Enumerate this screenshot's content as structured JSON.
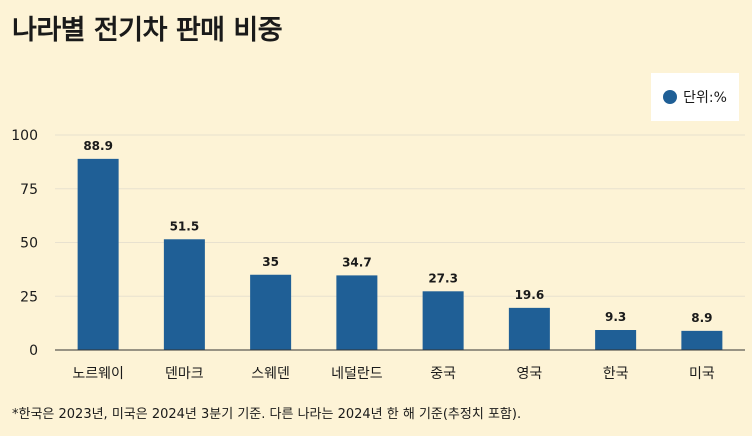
{
  "title": "나라별 전기차 판매 비중",
  "legend": {
    "label": "단위:%"
  },
  "footnote": "*한국은 2023년, 미국은 2024년 3분기 기준. 다른 나라는 2024년 한 해 기준(추정치 포함).",
  "colors": {
    "background": "#fdf3d6",
    "bar": "#1f5f96",
    "grid": "#e8e1cf",
    "axis": "#333333"
  },
  "chart_data": {
    "type": "bar",
    "categories": [
      "노르웨이",
      "덴마크",
      "스웨덴",
      "네덜란드",
      "중국",
      "영국",
      "한국",
      "미국"
    ],
    "values": [
      88.9,
      51.5,
      35,
      34.7,
      27.3,
      19.6,
      9.3,
      8.9
    ],
    "value_labels": [
      "88.9",
      "51.5",
      "35",
      "34.7",
      "27.3",
      "19.6",
      "9.3",
      "8.9"
    ],
    "ylim": [
      0,
      100
    ],
    "yticks": [
      0,
      25,
      50,
      75,
      100
    ],
    "grid": true
  }
}
